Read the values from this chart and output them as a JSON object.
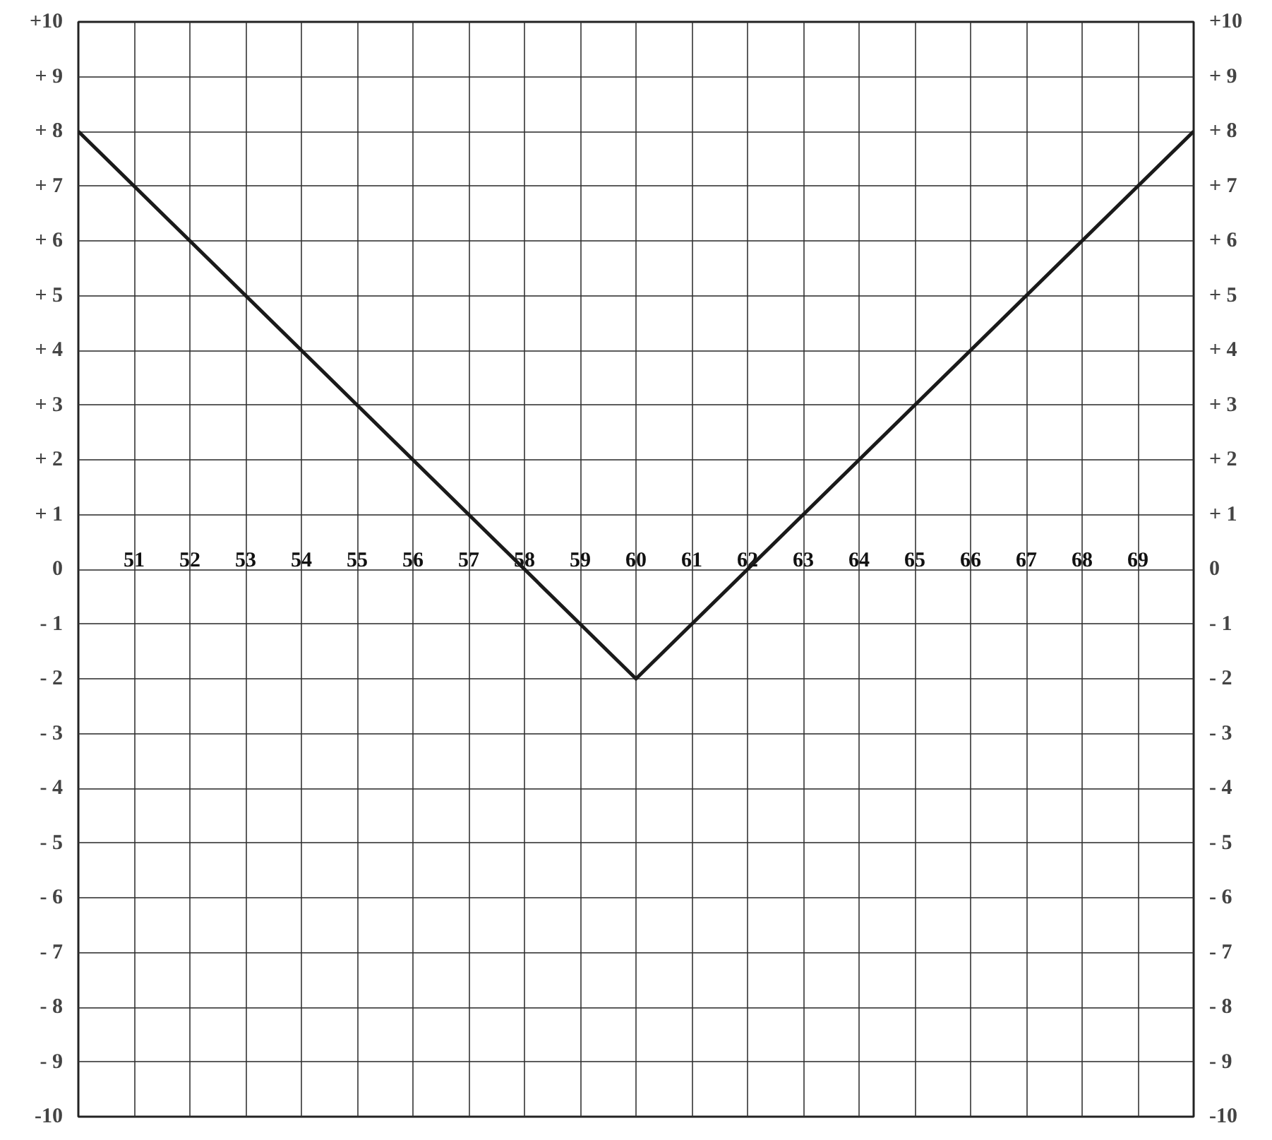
{
  "chart_data": {
    "type": "line",
    "x": [
      50,
      60,
      70
    ],
    "values": [
      8,
      -2,
      8
    ],
    "color": "#1a1a1a",
    "line_style": "solid",
    "xlim": [
      50,
      70
    ],
    "xticks": [
      51,
      52,
      53,
      54,
      55,
      56,
      57,
      58,
      59,
      60,
      61,
      62,
      63,
      64,
      65,
      66,
      67,
      68,
      69
    ],
    "ylim": [
      -10,
      10
    ],
    "yticks": [
      {
        "value": 10,
        "label": "+10"
      },
      {
        "value": 9,
        "label": "+ 9"
      },
      {
        "value": 8,
        "label": "+ 8"
      },
      {
        "value": 7,
        "label": "+ 7"
      },
      {
        "value": 6,
        "label": "+ 6"
      },
      {
        "value": 5,
        "label": "+ 5"
      },
      {
        "value": 4,
        "label": "+ 4"
      },
      {
        "value": 3,
        "label": "+ 3"
      },
      {
        "value": 2,
        "label": "+ 2"
      },
      {
        "value": 1,
        "label": "+ 1"
      },
      0,
      {
        "value": -1,
        "label": "- 1"
      },
      {
        "value": -2,
        "label": "- 2"
      },
      {
        "value": -3,
        "label": "- 3"
      },
      {
        "value": -4,
        "label": "- 4"
      },
      {
        "value": -5,
        "label": "- 5"
      },
      {
        "value": -6,
        "label": "- 6"
      },
      {
        "value": -7,
        "label": "- 7"
      },
      {
        "value": -8,
        "label": "- 8"
      },
      {
        "value": -9,
        "label": "- 9"
      },
      {
        "value": -10,
        "label": "-10"
      }
    ],
    "y2lim": [
      -10,
      10
    ],
    "y2ticks": [
      {
        "value": 10,
        "label": "+10"
      },
      {
        "value": 9,
        "label": "+ 9"
      },
      {
        "value": 8,
        "label": "+ 8"
      },
      {
        "value": 7,
        "label": "+ 7"
      },
      {
        "value": 6,
        "label": "+ 6"
      },
      {
        "value": 5,
        "label": "+ 5"
      },
      {
        "value": 4,
        "label": "+ 4"
      },
      {
        "value": 3,
        "label": "+ 3"
      },
      {
        "value": 2,
        "label": "+ 2"
      },
      {
        "value": 1,
        "label": "+ 1"
      },
      0,
      {
        "value": -1,
        "label": "- 1"
      },
      {
        "value": -2,
        "label": "- 2"
      },
      {
        "value": -3,
        "label": "- 3"
      },
      {
        "value": -4,
        "label": "- 4"
      },
      {
        "value": -5,
        "label": "- 5"
      },
      {
        "value": -6,
        "label": "- 6"
      },
      {
        "value": -7,
        "label": "- 7"
      },
      {
        "value": -8,
        "label": "- 8"
      },
      {
        "value": -9,
        "label": "- 9"
      },
      {
        "value": -10,
        "label": "-10"
      }
    ],
    "grid": true
  }
}
